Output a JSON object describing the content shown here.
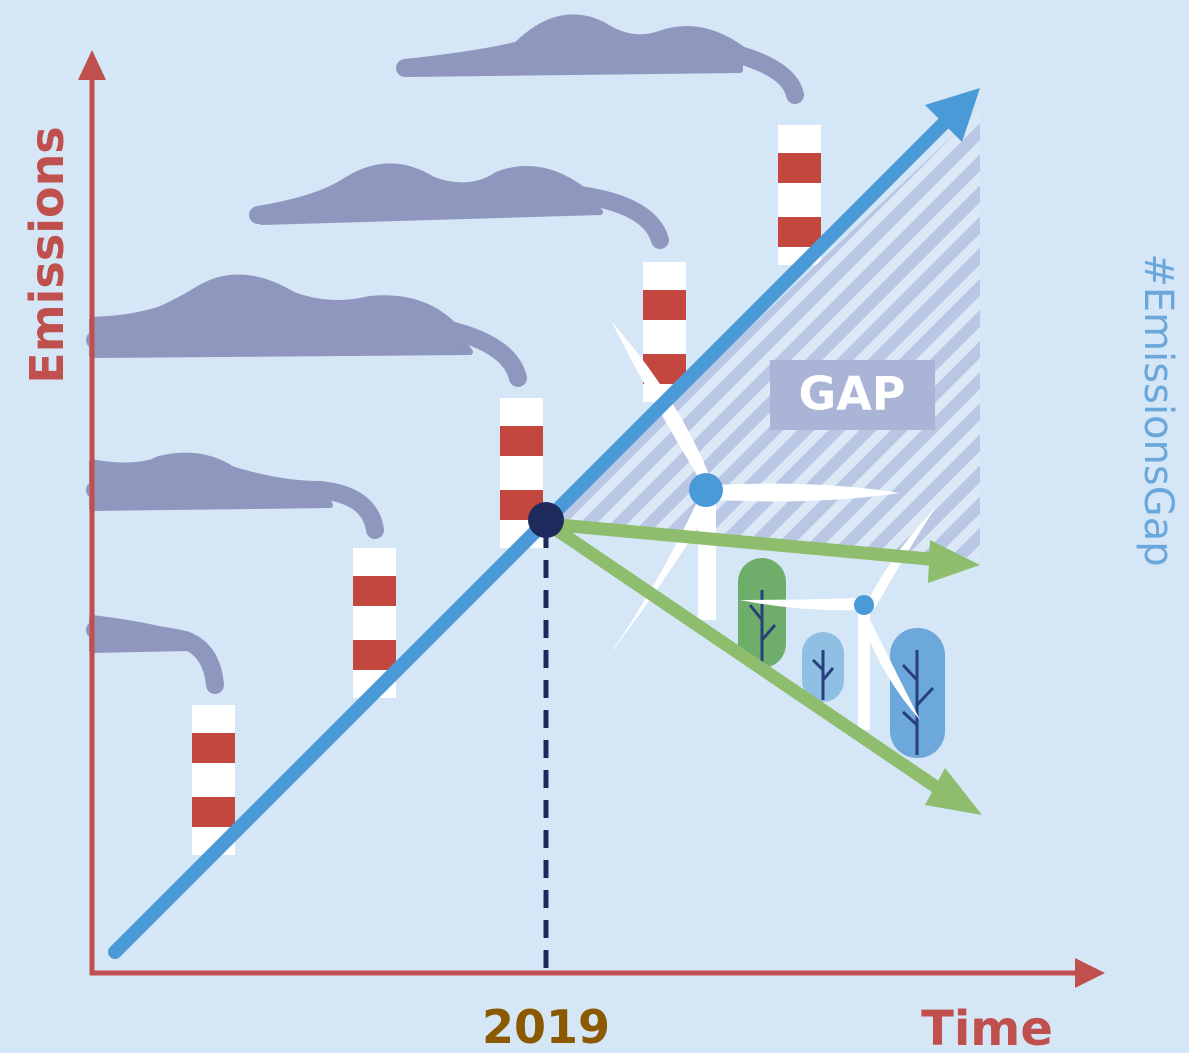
{
  "axes": {
    "y_label": "Emissions",
    "x_label": "Time",
    "marker_label": "2019"
  },
  "gap_label": "GAP",
  "hashtag": "#EmissionsGap"
}
